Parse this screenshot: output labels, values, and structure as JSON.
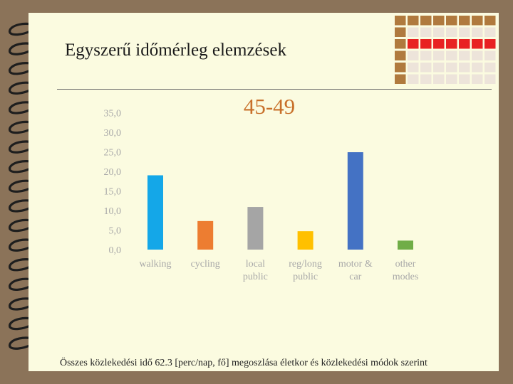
{
  "slide": {
    "title": "Egyszerű időmérleg elemzések",
    "caption": "Összes közlekedési idő 62.3 [perc/nap, fő] megoszlása életkor és közlekedési módok szerint"
  },
  "colors": {
    "background": "#fbfbe0",
    "frame": "#8b7359",
    "deco_brown": "#b07a3e",
    "deco_red": "#e82222",
    "deco_light": "#ede4da",
    "title_orange": "#c8702a",
    "tick_text": "#a8a8a8"
  },
  "chart_data": {
    "type": "bar",
    "title": "45-49",
    "categories": [
      [
        "walking"
      ],
      [
        "cycling"
      ],
      [
        "local",
        "public"
      ],
      [
        "reg/long",
        "public"
      ],
      [
        "motor &",
        "car"
      ],
      [
        "other",
        "modes"
      ]
    ],
    "values": [
      19.0,
      7.3,
      10.9,
      4.7,
      24.9,
      2.3
    ],
    "colors": [
      "#14a7e8",
      "#ed7d31",
      "#a5a5a5",
      "#ffc000",
      "#4472c4",
      "#70ad47"
    ],
    "yticks": [
      "0,0",
      "5,0",
      "10,0",
      "15,0",
      "20,0",
      "25,0",
      "30,0",
      "35,0"
    ],
    "ylim": [
      0,
      35
    ],
    "xlabel": "",
    "ylabel": "",
    "grid": false,
    "legend": "none"
  }
}
